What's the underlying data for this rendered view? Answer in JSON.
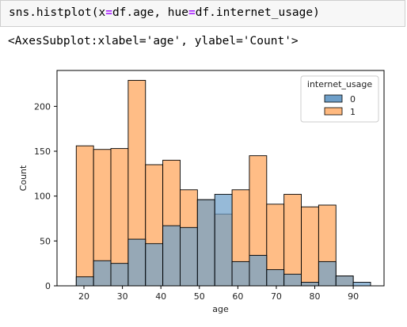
{
  "code": {
    "func": "sns.histplot(x",
    "eq1": "=",
    "mid": "df.age, hue",
    "eq2": "=",
    "tail": "df.internet_usage)"
  },
  "output": {
    "repr": "<AxesSubplot:xlabel='age', ylabel='Count'>"
  },
  "chart_data": {
    "type": "bar",
    "title": "",
    "xlabel": "age",
    "ylabel": "Count",
    "xlim": [
      13,
      98
    ],
    "ylim": [
      0,
      240
    ],
    "xticks": [
      20,
      30,
      40,
      50,
      60,
      70,
      80,
      90
    ],
    "yticks": [
      0,
      50,
      100,
      150,
      200
    ],
    "bin_edges": [
      18,
      22.5,
      27,
      31.5,
      36,
      40.5,
      45,
      49.5,
      54,
      58.5,
      63,
      67.5,
      72,
      76.5,
      81,
      85.5,
      90,
      94.5
    ],
    "legend": {
      "title": "internet_usage",
      "position": "top-right"
    },
    "series": [
      {
        "name": "0",
        "color": "#6e9fc9",
        "values": [
          10,
          28,
          25,
          52,
          47,
          67,
          65,
          96,
          102,
          27,
          34,
          18,
          13,
          4,
          27,
          11,
          4
        ]
      },
      {
        "name": "1",
        "color": "#ffb97f",
        "values": [
          156,
          152,
          153,
          229,
          135,
          140,
          107,
          96,
          80,
          107,
          145,
          91,
          102,
          88,
          90,
          11,
          0
        ]
      }
    ]
  }
}
